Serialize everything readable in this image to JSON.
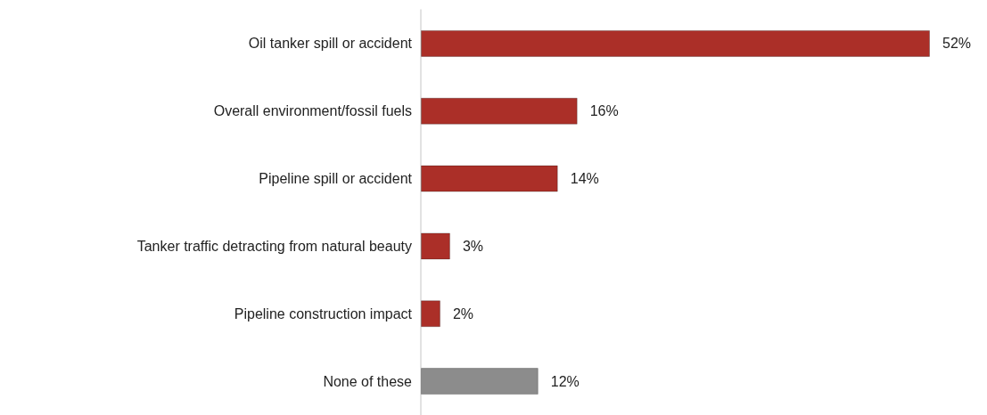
{
  "chart_data": {
    "type": "bar",
    "orientation": "horizontal",
    "categories": [
      "Oil tanker spill or accident",
      "Overall environment/fossil fuels",
      "Pipeline spill or accident",
      "Tanker traffic detracting from natural beauty",
      "Pipeline construction impact",
      "None of these"
    ],
    "values": [
      52,
      16,
      14,
      3,
      2,
      12
    ],
    "colors": [
      "#ab2f28",
      "#ab2f28",
      "#ab2f28",
      "#ab2f28",
      "#ab2f28",
      "#8c8c8c"
    ],
    "value_labels": [
      "52%",
      "16%",
      "14%",
      "3%",
      "2%",
      "12%"
    ]
  }
}
